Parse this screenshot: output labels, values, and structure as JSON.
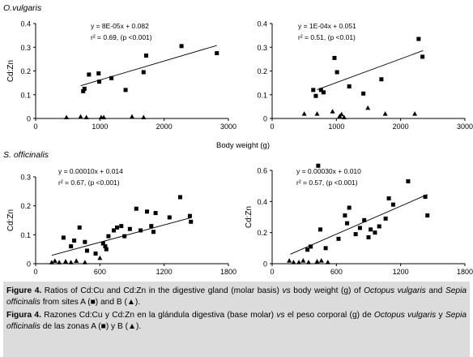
{
  "sections": {
    "top": "O.vulgaris",
    "bottom": "S. officinalis"
  },
  "chart_data": [
    {
      "id": "p1",
      "type": "scatter",
      "ylabel": "Cd:Zn",
      "xlabel": "",
      "xlim": [
        0,
        3000
      ],
      "ylim": [
        0,
        0.4
      ],
      "xticks": [
        0,
        1000,
        2000,
        3000
      ],
      "yticks": [
        0,
        0.1,
        0.2,
        0.3,
        0.4
      ],
      "ytick_labels": [
        "0",
        "0.1",
        "0.2",
        "0.3",
        "0.4"
      ],
      "equation": "y = 8E-05x + 0.082",
      "r2_text": "r² = 0.69, (p <0.001)",
      "trendline": {
        "slope": 8e-05,
        "intercept": 0.082,
        "x_range": [
          700,
          2820
        ]
      },
      "series": [
        {
          "marker": "square",
          "points": [
            [
              740,
              0.115
            ],
            [
              760,
              0.125
            ],
            [
              830,
              0.185
            ],
            [
              980,
              0.19
            ],
            [
              990,
              0.155
            ],
            [
              1180,
              0.17
            ],
            [
              1400,
              0.12
            ],
            [
              1680,
              0.195
            ],
            [
              1720,
              0.265
            ],
            [
              2270,
              0.305
            ],
            [
              2820,
              0.275
            ]
          ]
        },
        {
          "marker": "triangle",
          "points": [
            [
              480,
              0.005
            ],
            [
              700,
              0.008
            ],
            [
              790,
              0.005
            ],
            [
              1020,
              0.005
            ],
            [
              1060,
              0.005
            ],
            [
              1500,
              0.008
            ],
            [
              1680,
              0.005
            ]
          ]
        }
      ]
    },
    {
      "id": "p2",
      "type": "scatter",
      "ylabel": "",
      "xlabel": "",
      "xlim": [
        0,
        3000
      ],
      "ylim": [
        0,
        0.4
      ],
      "xticks": [
        0,
        1000,
        2000,
        3000
      ],
      "yticks": [
        0,
        0.1,
        0.2,
        0.3,
        0.4
      ],
      "ytick_labels": [
        "0",
        "0.1",
        "0.2",
        "0.3",
        "0.4"
      ],
      "equation": "y = 1E-04x + 0.051",
      "r2_text": "r² = 0.51, (p <0.01)",
      "trendline": {
        "slope": 0.0001,
        "intercept": 0.051,
        "x_range": [
          700,
          2350
        ]
      },
      "series": [
        {
          "marker": "square",
          "points": [
            [
              640,
              0.12
            ],
            [
              680,
              0.095
            ],
            [
              760,
              0.12
            ],
            [
              800,
              0.11
            ],
            [
              970,
              0.255
            ],
            [
              1010,
              0.195
            ],
            [
              1200,
              0.135
            ],
            [
              1420,
              0.105
            ],
            [
              1700,
              0.165
            ],
            [
              2280,
              0.335
            ],
            [
              2340,
              0.26
            ]
          ]
        },
        {
          "marker": "triangle",
          "points": [
            [
              500,
              0.02
            ],
            [
              700,
              0.02
            ],
            [
              940,
              0.03
            ],
            [
              1050,
              0.01
            ],
            [
              1080,
              0.018
            ],
            [
              1120,
              0.005
            ],
            [
              1490,
              0.045
            ],
            [
              1760,
              0.02
            ],
            [
              2220,
              0.02
            ]
          ]
        }
      ]
    },
    {
      "id": "p3",
      "type": "scatter",
      "ylabel": "Cd:Zn",
      "xlabel": "",
      "xlim": [
        0,
        1800
      ],
      "ylim": [
        0,
        0.3
      ],
      "xticks": [
        0,
        600,
        1200,
        1800
      ],
      "yticks": [
        0,
        0.1,
        0.2,
        0.3
      ],
      "ytick_labels": [
        "0",
        "0.1",
        "0.2",
        "0.3"
      ],
      "equation": "y = 0.00010x + 0.014",
      "r2_text": "r² = 0.67, (p <0.001)",
      "trendline": {
        "slope": 0.0001,
        "intercept": 0.014,
        "x_range": [
          150,
          1450
        ]
      },
      "series": [
        {
          "marker": "square",
          "points": [
            [
              260,
              0.09
            ],
            [
              330,
              0.06
            ],
            [
              360,
              0.08
            ],
            [
              410,
              0.125
            ],
            [
              460,
              0.075
            ],
            [
              480,
              0.045
            ],
            [
              560,
              0.035
            ],
            [
              630,
              0.07
            ],
            [
              650,
              0.06
            ],
            [
              660,
              0.05
            ],
            [
              680,
              0.095
            ],
            [
              730,
              0.115
            ],
            [
              760,
              0.125
            ],
            [
              800,
              0.13
            ],
            [
              830,
              0.095
            ],
            [
              880,
              0.12
            ],
            [
              940,
              0.19
            ],
            [
              980,
              0.115
            ],
            [
              1040,
              0.18
            ],
            [
              1080,
              0.13
            ],
            [
              1100,
              0.11
            ],
            [
              1120,
              0.175
            ],
            [
              1250,
              0.16
            ],
            [
              1350,
              0.23
            ],
            [
              1440,
              0.165
            ],
            [
              1450,
              0.145
            ]
          ]
        },
        {
          "marker": "triangle",
          "points": [
            [
              150,
              0.005
            ],
            [
              180,
              0.01
            ],
            [
              220,
              0.005
            ],
            [
              280,
              0.008
            ],
            [
              330,
              0.005
            ],
            [
              380,
              0.01
            ],
            [
              460,
              0.005
            ],
            [
              600,
              0.02
            ]
          ]
        }
      ]
    },
    {
      "id": "p4",
      "type": "scatter",
      "ylabel": "Cd:Zn",
      "xlabel": "Body weight (g)",
      "xlim": [
        0,
        1800
      ],
      "ylim": [
        0,
        0.6
      ],
      "xticks": [
        0,
        600,
        1200,
        1800
      ],
      "yticks": [
        0,
        0.2,
        0.4,
        0.6
      ],
      "ytick_labels": [
        "0",
        "0.2",
        "0.4",
        "0.6"
      ],
      "equation": "y = 0.00030x + 0.010",
      "r2_text": "r² = 0.57, (p <0.001)",
      "trendline": {
        "slope": 0.0003,
        "intercept": 0.01,
        "x_range": [
          170,
          1450
        ]
      },
      "series": [
        {
          "marker": "square",
          "points": [
            [
              330,
              0.09
            ],
            [
              360,
              0.11
            ],
            [
              430,
              0.63
            ],
            [
              450,
              0.22
            ],
            [
              500,
              0.1
            ],
            [
              620,
              0.16
            ],
            [
              680,
              0.31
            ],
            [
              700,
              0.26
            ],
            [
              720,
              0.36
            ],
            [
              780,
              0.19
            ],
            [
              820,
              0.23
            ],
            [
              860,
              0.28
            ],
            [
              900,
              0.17
            ],
            [
              920,
              0.22
            ],
            [
              960,
              0.2
            ],
            [
              1000,
              0.24
            ],
            [
              1060,
              0.29
            ],
            [
              1090,
              0.42
            ],
            [
              1130,
              0.38
            ],
            [
              1270,
              0.53
            ],
            [
              1430,
              0.43
            ],
            [
              1450,
              0.31
            ]
          ]
        },
        {
          "marker": "triangle",
          "points": [
            [
              160,
              0.02
            ],
            [
              200,
              0.01
            ],
            [
              250,
              0.01
            ],
            [
              290,
              0.02
            ],
            [
              340,
              0.01
            ],
            [
              420,
              0.015
            ],
            [
              460,
              0.02
            ],
            [
              520,
              0.01
            ]
          ]
        }
      ]
    }
  ],
  "axis_title_top": "Body weight (g)",
  "caption": {
    "en_label": "Figure 4.",
    "en_text_1": " Ratios of Cd:Cu and Cd:Zn in the digestive gland (molar basis) ",
    "en_vs": "vs",
    "en_text_2": " body weight (g) of ",
    "en_species_1": "Octopus vulgaris",
    "en_text_3": " and ",
    "en_species_2": "Sepia officinalis",
    "en_text_4": " from sites A (■) and B (▲).",
    "es_label": "Figura 4.",
    "es_text_1": " Razones Cd:Cu y Cd:Zn en la glándula digestiva (base molar) ",
    "es_vs": "vs",
    "es_text_2": " el peso corporal (g) de ",
    "es_species_1": "Octopus vulgaris",
    "es_text_3": " y ",
    "es_species_2": "Sepia officinalis",
    "es_text_4": " de las zonas A (■) y B (▲)."
  }
}
